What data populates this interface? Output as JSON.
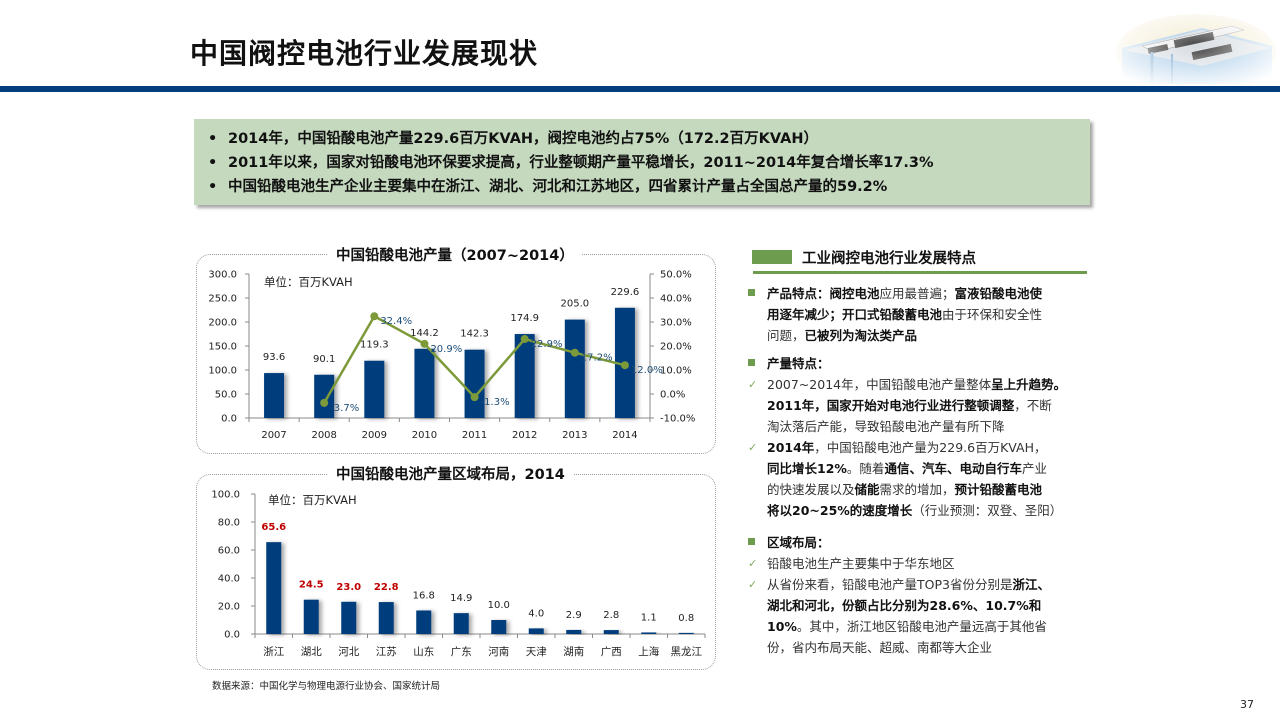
{
  "header": {
    "title": "中国阀控电池行业发展现状",
    "image": "battery-illustration",
    "accent_color": "#023e7d"
  },
  "summary": {
    "background": "#c5d9bf",
    "bullets": [
      "2014年，中国铅酸电池产量229.6百万KVAH，阀控电池约占75%（172.2百万KVAH）",
      "2011年以来，国家对铅酸电池环保要求提高，行业整顿期产量平稳增长，2011~2014年复合增长率17.3%",
      "中国铅酸电池生产企业主要集中在浙江、湖北、河北和江苏地区，四省累计产量占全国总产量的59.2%"
    ],
    "bullet_glyph": "•"
  },
  "chart_data": [
    {
      "type": "bar",
      "title": "中国铅酸电池产量（2007~2014）",
      "unit_label": "单位：百万KVAH",
      "categories": [
        "2007",
        "2008",
        "2009",
        "2010",
        "2011",
        "2012",
        "2013",
        "2014"
      ],
      "series": [
        {
          "name": "产量",
          "type": "bar",
          "axis": "left",
          "color": "#023e7d",
          "values": [
            93.6,
            90.1,
            119.3,
            144.2,
            142.3,
            174.9,
            205.0,
            229.6
          ],
          "labels": [
            "93.6",
            "90.1",
            "119.3",
            "144.2",
            "142.3",
            "174.9",
            "205.0",
            "229.6"
          ]
        },
        {
          "name": "增长率",
          "type": "line",
          "axis": "right",
          "color": "#7d9a3b",
          "values": [
            null,
            -3.7,
            32.4,
            20.9,
            -1.3,
            22.9,
            17.2,
            12.0
          ],
          "labels": [
            "",
            "-3.7%",
            "32.4%",
            "20.9%",
            "-1.3%",
            "22.9%",
            "17.2%",
            "12.0%"
          ]
        }
      ],
      "ylim": [
        0,
        300
      ],
      "yticks": [
        "0.0",
        "50.0",
        "100.0",
        "150.0",
        "200.0",
        "250.0",
        "300.0"
      ],
      "y2lim": [
        -10,
        50
      ],
      "y2ticks": [
        "-10.0%",
        "0.0%",
        "10.0%",
        "20.0%",
        "30.0%",
        "40.0%",
        "50.0%"
      ],
      "grid": false,
      "xlabel": "",
      "ylabel": ""
    },
    {
      "type": "bar",
      "title": "中国铅酸电池产量区域布局，2014",
      "unit_label": "单位：百万KVAH",
      "categories": [
        "浙江",
        "湖北",
        "河北",
        "江苏",
        "山东",
        "广东",
        "河南",
        "天津",
        "湖南",
        "广西",
        "上海",
        "黑龙江"
      ],
      "values": [
        65.6,
        24.5,
        23.0,
        22.8,
        16.8,
        14.9,
        10.0,
        4.0,
        2.9,
        2.8,
        1.1,
        0.8
      ],
      "labels": [
        "65.6",
        "24.5",
        "23.0",
        "22.8",
        "16.8",
        "14.9",
        "10.0",
        "4.0",
        "2.9",
        "2.8",
        "1.1",
        "0.8"
      ],
      "highlight_count": 4,
      "highlight_color": "#c00000",
      "bar_color": "#023e7d",
      "ylim": [
        0,
        100
      ],
      "yticks": [
        "0.0",
        "20.0",
        "40.0",
        "60.0",
        "80.0",
        "100.0"
      ],
      "grid": false,
      "xlabel": "",
      "ylabel": ""
    }
  ],
  "source": "数据来源：中国化学与物理电源行业协会、国家统计局",
  "features": {
    "heading": "工业阀控电池行业发展特点",
    "accent": "#6d9c4e",
    "sections": [
      {
        "title_bold": "产品特点：",
        "lines": [
          [
            {
              "t": "阀控电池",
              "b": true
            },
            {
              "t": "应用最普遍；",
              "b": false
            },
            {
              "t": "富液铅酸电池使",
              "b": true
            }
          ],
          [
            {
              "t": "用逐年减少；开口式铅酸蓄电池",
              "b": true
            },
            {
              "t": "由于环保和安全性",
              "b": false
            }
          ],
          [
            {
              "t": "问题，",
              "b": false
            },
            {
              "t": "已被列为淘汰类产品",
              "b": true
            }
          ]
        ]
      },
      {
        "title_bold": "产量特点：",
        "checks": [
          [
            [
              {
                "t": "2007~2014年，中国铅酸电池产量整体",
                "b": false
              },
              {
                "t": "呈上升趋势。",
                "b": true
              }
            ],
            [
              {
                "t": "2011年，国家开始对电池行业进行整顿调整",
                "b": true
              },
              {
                "t": "，不断",
                "b": false
              }
            ],
            [
              {
                "t": "淘汰落后产能，导致铅酸电池产量有所下降",
                "b": false
              }
            ]
          ],
          [
            [
              {
                "t": "2014年",
                "b": true
              },
              {
                "t": "，中国铅酸电池产量为229.6百万KVAH，",
                "b": false
              }
            ],
            [
              {
                "t": "同比增长12%",
                "b": true
              },
              {
                "t": "。随着",
                "b": false
              },
              {
                "t": "通信、汽车、电动自行车",
                "b": true
              },
              {
                "t": "产业",
                "b": false
              }
            ],
            [
              {
                "t": "的快速发展以及",
                "b": false
              },
              {
                "t": "储能",
                "b": true
              },
              {
                "t": "需求的增加，",
                "b": false
              },
              {
                "t": "预计铅酸蓄电池",
                "b": true
              }
            ],
            [
              {
                "t": "将以20~25%的速度增长",
                "b": true
              },
              {
                "t": "（行业预测：双登、圣阳）",
                "b": false
              }
            ]
          ]
        ]
      },
      {
        "title_bold": "区域布局：",
        "checks": [
          [
            [
              {
                "t": "铅酸电池生产主要集中于华东地区",
                "b": false
              }
            ]
          ],
          [
            [
              {
                "t": "从省份来看，铅酸电池产量TOP3省份分别是",
                "b": false
              },
              {
                "t": "浙江、",
                "b": true
              }
            ],
            [
              {
                "t": "湖北和河北，份额占比分别为28.6%、10.7%和",
                "b": true
              }
            ],
            [
              {
                "t": "10%",
                "b": true
              },
              {
                "t": "。其中，浙江地区铅酸电池产量远高于其他省",
                "b": false
              }
            ],
            [
              {
                "t": "份，省内布局天能、超威、南都等大企业",
                "b": false
              }
            ]
          ]
        ]
      }
    ]
  },
  "page_number": "37"
}
